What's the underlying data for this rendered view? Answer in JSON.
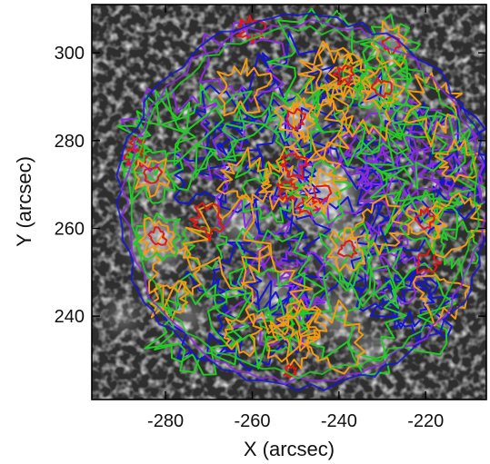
{
  "chart_data": {
    "type": "image-with-contours",
    "xlabel": "X (arcsec)",
    "ylabel": "Y (arcsec)",
    "xlim": [
      -297,
      -206
    ],
    "ylim": [
      221,
      311
    ],
    "xticks": [
      -280,
      -260,
      -240,
      -220
    ],
    "yticks": [
      240,
      260,
      280,
      300
    ],
    "xtick_labels": [
      "-280",
      "-260",
      "-240",
      "-220"
    ],
    "ytick_labels": [
      "240",
      "260",
      "280",
      "300"
    ],
    "background": "grayscale intensity image with circular field of view",
    "field_of_view": {
      "center": [
        -248,
        266
      ],
      "radius": 44
    },
    "contour_colors": {
      "blue": "#1515d8",
      "purple": "#8a2be2",
      "green": "#22cc22",
      "orange": "#f29a12",
      "red": "#e01818"
    },
    "contour_levels": [
      "blue",
      "purple",
      "green",
      "orange",
      "red"
    ]
  }
}
